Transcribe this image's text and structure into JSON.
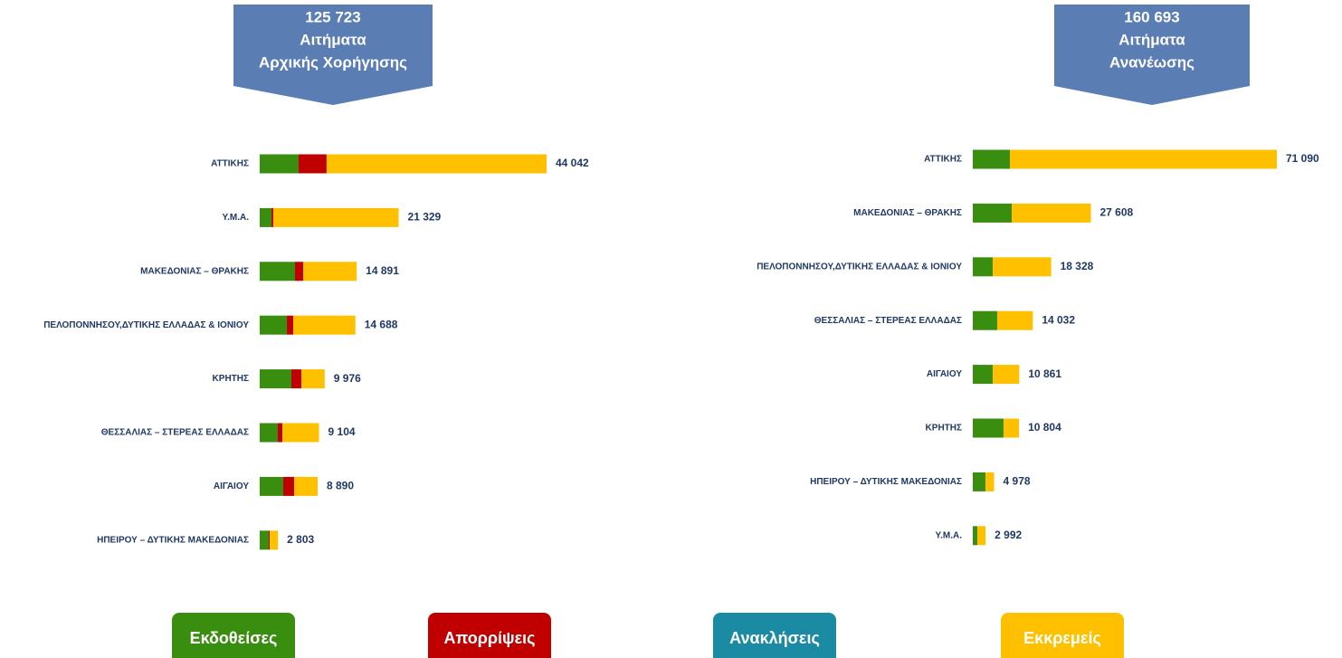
{
  "chart_data": [
    {
      "type": "bar",
      "orientation": "horizontal",
      "stacked": true,
      "title": [
        "125 723",
        "Αιτήματα",
        "Αρχικής Χορήγησης"
      ],
      "categories": [
        "ΑΤΤΙΚΗΣ",
        "Υ.Μ.Α.",
        "ΜΑΚΕΔΟΝΙΑΣ – ΘΡΑΚΗΣ",
        "ΠΕΛΟΠΟΝΝΗΣΟΥ,ΔΥΤΙΚΗΣ ΕΛΛΑΔΑΣ & ΙΟΝΙΟΥ",
        "ΚΡΗΤΗΣ",
        "ΘΕΣΣΑΛΙΑΣ – ΣΤΕΡΕΑΣ ΕΛΛΑΔΑΣ",
        "ΑΙΓΑΙΟΥ",
        "ΗΠΕΙΡΟΥ – ΔΥΤΙΚΗΣ ΜΑΚΕΔΟΝΙΑΣ"
      ],
      "series": [
        {
          "name": "Εκδοθείσες",
          "color": "#3a8e0f",
          "values": [
            5970,
            1800,
            5420,
            4170,
            4860,
            2780,
            3610,
            1390
          ]
        },
        {
          "name": "Απορρίψεις",
          "color": "#c00000",
          "values": [
            4300,
            280,
            1250,
            970,
            1530,
            700,
            1670,
            140
          ]
        },
        {
          "name": "Εκκρεμείς",
          "color": "#ffc000",
          "values": [
            33772,
            19249,
            8221,
            9548,
            3586,
            5624,
            3610,
            1273
          ]
        }
      ],
      "totals": [
        44042,
        21329,
        14891,
        14688,
        9976,
        9104,
        8890,
        2803
      ],
      "total_labels": [
        "44 042",
        "21 329",
        "14 891",
        "14 688",
        "9 976",
        "9 104",
        "8 890",
        "2 803"
      ]
    },
    {
      "type": "bar",
      "orientation": "horizontal",
      "stacked": true,
      "title": [
        "160 693",
        "Αιτήματα",
        "Ανανέωσης"
      ],
      "categories": [
        "ΑΤΤΙΚΗΣ",
        "ΜΑΚΕΔΟΝΙΑΣ – ΘΡΑΚΗΣ",
        "ΠΕΛΟΠΟΝΝΗΣΟΥ,ΔΥΤΙΚΗΣ ΕΛΛΑΔΑΣ & ΙΟΝΙΟΥ",
        "ΘΕΣΣΑΛΙΑΣ – ΣΤΕΡΕΑΣ ΕΛΛΑΔΑΣ",
        "ΑΙΓΑΙΟΥ",
        "ΚΡΗΤΗΣ",
        "ΗΠΕΙΡΟΥ – ΔΥΤΙΚΗΣ ΜΑΚΕΔΟΝΙΑΣ",
        "Υ.Μ.Α."
      ],
      "series": [
        {
          "name": "Εκδοθείσες",
          "color": "#3a8e0f",
          "values": [
            8680,
            9100,
            4660,
            5710,
            4660,
            7190,
            2960,
            1060
          ]
        },
        {
          "name": "Εκκρεμείς",
          "color": "#ffc000",
          "values": [
            62410,
            18508,
            13668,
            8322,
            6201,
            3614,
            2018,
            1932
          ]
        }
      ],
      "totals": [
        71090,
        27608,
        18328,
        14032,
        10861,
        10804,
        4978,
        2992
      ],
      "total_labels": [
        "71 090",
        "27 608",
        "18 328",
        "14 032",
        "10 861",
        "10 804",
        "4 978",
        "2 992"
      ]
    }
  ],
  "legend": [
    {
      "name": "Εκδοθείσες",
      "color": "#3a8e0f"
    },
    {
      "name": "Απορρίψεις",
      "color": "#c00000"
    },
    {
      "name": "Ανακλήσεις",
      "color": "#1b8aa3"
    },
    {
      "name": "Εκκρεμείς",
      "color": "#ffc000"
    }
  ]
}
